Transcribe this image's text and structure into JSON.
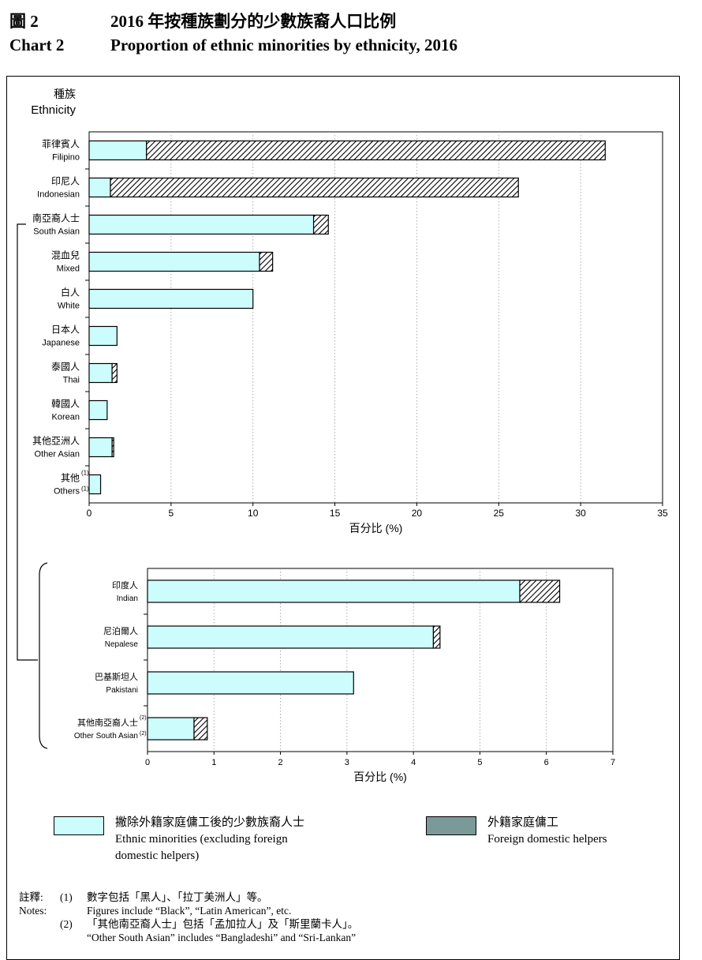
{
  "header": {
    "zh_label": "圖 2",
    "zh_title": "2016 年按種族劃分的少數族裔人口比例",
    "en_label": "Chart 2",
    "en_title": "Proportion of ethnic minorities by ethnicity, 2016"
  },
  "colors": {
    "em": "#cdfcfc",
    "fdh": "#7a9a9a",
    "axis": "#000000",
    "grid": "#999999"
  },
  "chart_data": [
    {
      "type": "bar",
      "orientation": "horizontal",
      "stacked": true,
      "ylabel_zh": "種族",
      "ylabel_en": "Ethnicity",
      "xlabel": "百分比 (%)",
      "xlim": [
        0,
        35
      ],
      "xticks": [
        0,
        5,
        10,
        15,
        20,
        25,
        30,
        35
      ],
      "grid": "vertical dotted",
      "categories": [
        {
          "zh": "菲律賓人",
          "en": "Filipino",
          "sup": ""
        },
        {
          "zh": "印尼人",
          "en": "Indonesian",
          "sup": ""
        },
        {
          "zh": "南亞裔人士",
          "en": "South Asian",
          "sup": ""
        },
        {
          "zh": "混血兒",
          "en": "Mixed",
          "sup": ""
        },
        {
          "zh": "白人",
          "en": "White",
          "sup": ""
        },
        {
          "zh": "日本人",
          "en": "Japanese",
          "sup": ""
        },
        {
          "zh": "泰國人",
          "en": "Thai",
          "sup": ""
        },
        {
          "zh": "韓國人",
          "en": "Korean",
          "sup": ""
        },
        {
          "zh": "其他亞洲人",
          "en": "Other Asian",
          "sup": ""
        },
        {
          "zh": "其他",
          "en": "Others",
          "sup": "(1)"
        }
      ],
      "series": [
        {
          "key": "em",
          "values": [
            3.5,
            1.3,
            13.7,
            10.4,
            10.0,
            1.7,
            1.4,
            1.1,
            1.4,
            0.7
          ]
        },
        {
          "key": "fdh",
          "values": [
            28.0,
            24.9,
            0.9,
            0.8,
            0.0,
            0.0,
            0.3,
            0.0,
            0.1,
            0.0
          ]
        }
      ]
    },
    {
      "type": "bar",
      "orientation": "horizontal",
      "stacked": true,
      "xlabel": "百分比 (%)",
      "xlim": [
        0,
        7
      ],
      "xticks": [
        0,
        1,
        2,
        3,
        4,
        5,
        6,
        7
      ],
      "grid": "vertical dotted",
      "categories": [
        {
          "zh": "印度人",
          "en": "Indian",
          "sup": ""
        },
        {
          "zh": "尼泊爾人",
          "en": "Nepalese",
          "sup": ""
        },
        {
          "zh": "巴基斯坦人",
          "en": "Pakistani",
          "sup": ""
        },
        {
          "zh": "其他南亞裔人士",
          "en": "Other South Asian",
          "sup": "(2)"
        }
      ],
      "series": [
        {
          "key": "em",
          "values": [
            5.6,
            4.3,
            3.1,
            0.7
          ]
        },
        {
          "key": "fdh",
          "values": [
            0.6,
            0.1,
            0.0,
            0.2
          ]
        }
      ]
    }
  ],
  "legend": {
    "em": {
      "zh": "撇除外籍家庭傭工後的少數族裔人士",
      "en1": "Ethnic minorities (excluding foreign",
      "en2": "domestic helpers)"
    },
    "fdh": {
      "zh": "外籍家庭傭工",
      "en": "Foreign domestic helpers"
    }
  },
  "notes": {
    "label_zh": "註釋:",
    "label_en": "Notes:",
    "n1_num": "(1)",
    "n1_zh": "數字包括「黑人」、「拉丁美洲人」等。",
    "n1_en": "Figures include “Black”, “Latin American”, etc.",
    "n2_num": "(2)",
    "n2_zh": "「其他南亞裔人士」包括「孟加拉人」及「斯里蘭卡人」。",
    "n2_en": "“Other South Asian” includes “Bangladeshi” and “Sri-Lankan”"
  }
}
